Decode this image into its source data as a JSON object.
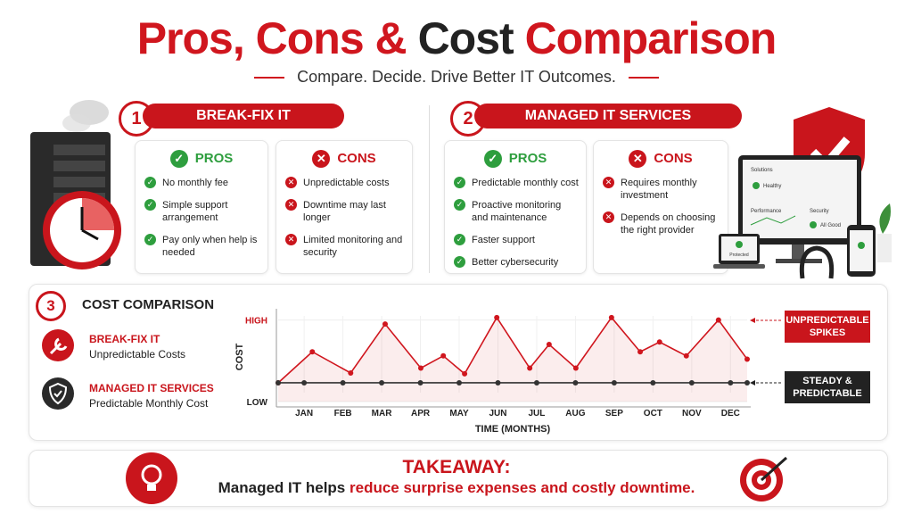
{
  "header": {
    "title_start": "Pros, Cons &",
    "title_mid": "Cost",
    "title_end": "Comparison",
    "subtitle": "Compare. Decide. Drive Better IT Outcomes."
  },
  "sections": [
    {
      "number": "1",
      "title": "BREAK-FIX IT",
      "pros_label": "PROS",
      "pros": [
        "No monthly fee",
        "Simple support arrangement",
        "Pay only when help is needed"
      ],
      "cons_label": "CONS",
      "cons": [
        "Unpredictable costs",
        "Downtime may last longer",
        "Limited monitoring and security"
      ]
    },
    {
      "number": "2",
      "title": "MANAGED IT SERVICES",
      "pros_label": "PROS",
      "pros": [
        "Predictable monthly cost",
        "Proactive monitoring and maintenance",
        "Faster support",
        "Better cybersecurity"
      ],
      "cons_label": "CONS",
      "cons": [
        "Requires monthly investment",
        "Depends on choosing the right provider"
      ]
    }
  ],
  "device_screen": {
    "heading": "Solutions",
    "items": [
      "Healthy",
      "Performance",
      "Security",
      "All Good"
    ],
    "badge": "Protected"
  },
  "cost": {
    "number": "3",
    "title": "COST COMPARISON",
    "legend": [
      {
        "name": "BREAK-FIX IT",
        "desc": "Unpredictable Costs"
      },
      {
        "name": "MANAGED IT SERVICES",
        "desc": "Predictable Monthly Cost"
      }
    ],
    "chart_data": {
      "type": "line",
      "y_label": "COST",
      "x_label": "TIME (MONTHS)",
      "xlim": [
        0.33,
        12.43
      ],
      "xticks": [
        {
          "value": 1,
          "label": "JAN"
        },
        {
          "value": 2,
          "label": "FEB"
        },
        {
          "value": 3,
          "label": "MAR"
        },
        {
          "value": 4,
          "label": "APR"
        },
        {
          "value": 5,
          "label": "MAY"
        },
        {
          "value": 6,
          "label": "JUN"
        },
        {
          "value": 7,
          "label": "JUL"
        },
        {
          "value": 8,
          "label": "AUG"
        },
        {
          "value": 9,
          "label": "SEP"
        },
        {
          "value": 10,
          "label": "OCT"
        },
        {
          "value": 11,
          "label": "NOV"
        },
        {
          "value": 12,
          "label": "DEC"
        }
      ],
      "ylim": [
        0,
        105
      ],
      "yticks": [
        {
          "value": 0,
          "label": "LOW"
        },
        {
          "value": 100,
          "label": "HIGH"
        }
      ],
      "series": [
        {
          "name": "BREAK-FIX IT",
          "color": "#d0161e",
          "x": [
            0.33,
            1.21,
            2.2,
            3.09,
            4.01,
            4.59,
            5.14,
            5.97,
            6.82,
            7.32,
            8.01,
            8.93,
            9.67,
            10.17,
            10.86,
            11.69,
            12.43
          ],
          "values": [
            23,
            61,
            35,
            95,
            41,
            56,
            34,
            103,
            41,
            70,
            41,
            103,
            61,
            73,
            56,
            100,
            52
          ]
        },
        {
          "name": "MANAGED IT SERVICES",
          "color": "#333333",
          "x": [
            0.33,
            1,
            2,
            3,
            4,
            5,
            6,
            7,
            8,
            9,
            10,
            11,
            12,
            12.43
          ],
          "values": [
            23,
            23,
            23,
            23,
            23,
            23,
            23,
            23,
            23,
            23,
            23,
            23,
            23,
            23
          ]
        }
      ],
      "annotations": [
        "UNPREDICTABLE SPIKES",
        "STEADY & PREDICTABLE"
      ]
    }
  },
  "takeaway": {
    "label": "TAKEAWAY:",
    "text_start": "Managed IT helps",
    "text_highlight": "reduce surprise expenses and costly downtime."
  }
}
